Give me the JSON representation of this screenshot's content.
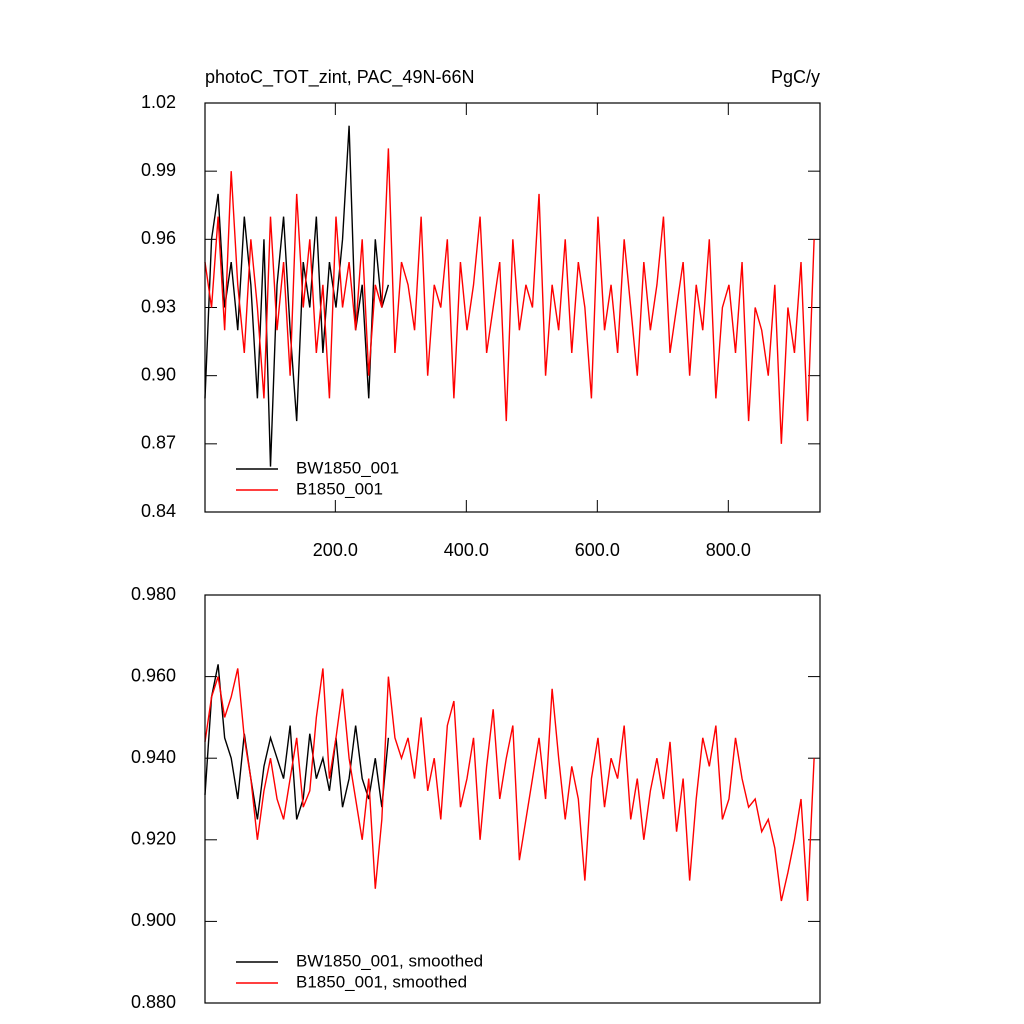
{
  "chart_data": [
    {
      "type": "line",
      "title": "photoC_TOT_zint, PAC_49N-66N",
      "units": "PgC/y",
      "xlim": [
        1,
        940
      ],
      "ylim": [
        0.84,
        1.02
      ],
      "xticks": [
        {
          "value": 200,
          "label": "200.0"
        },
        {
          "value": 400,
          "label": "400.0"
        },
        {
          "value": 600,
          "label": "600.0"
        },
        {
          "value": 800,
          "label": "800.0"
        }
      ],
      "yticks": [
        0.84,
        0.87,
        {
          "value": 0.9,
          "label": "0.90"
        },
        0.93,
        0.96,
        0.99,
        1.02
      ],
      "series": [
        {
          "name": "BW1850_001",
          "color": "#000000",
          "x": [
            1,
            11,
            21,
            31,
            41,
            51,
            61,
            71,
            81,
            91,
            101,
            111,
            121,
            131,
            141,
            151,
            161,
            171,
            181,
            191,
            201,
            211,
            221,
            231,
            241,
            251,
            261,
            271,
            281
          ],
          "values": [
            0.89,
            0.96,
            0.98,
            0.93,
            0.95,
            0.92,
            0.97,
            0.94,
            0.89,
            0.96,
            0.86,
            0.94,
            0.97,
            0.92,
            0.88,
            0.95,
            0.93,
            0.97,
            0.91,
            0.95,
            0.93,
            0.96,
            1.01,
            0.92,
            0.94,
            0.89,
            0.96,
            0.93,
            0.94
          ]
        },
        {
          "name": "B1850_001",
          "color": "#ff0000",
          "x": [
            1,
            11,
            21,
            31,
            41,
            51,
            61,
            71,
            81,
            91,
            101,
            111,
            121,
            131,
            141,
            151,
            161,
            171,
            181,
            191,
            201,
            211,
            221,
            231,
            241,
            251,
            261,
            271,
            281,
            291,
            301,
            311,
            321,
            331,
            341,
            351,
            361,
            371,
            381,
            391,
            401,
            411,
            421,
            431,
            441,
            451,
            461,
            471,
            481,
            491,
            501,
            511,
            521,
            531,
            541,
            551,
            561,
            571,
            581,
            591,
            601,
            611,
            621,
            631,
            641,
            651,
            661,
            671,
            681,
            691,
            701,
            711,
            721,
            731,
            741,
            751,
            761,
            771,
            781,
            791,
            801,
            811,
            821,
            831,
            841,
            851,
            861,
            871,
            881,
            891,
            901,
            911,
            921,
            931
          ],
          "values": [
            0.95,
            0.93,
            0.97,
            0.92,
            0.99,
            0.94,
            0.91,
            0.96,
            0.93,
            0.89,
            0.97,
            0.92,
            0.95,
            0.9,
            0.98,
            0.93,
            0.96,
            0.91,
            0.94,
            0.89,
            0.97,
            0.93,
            0.95,
            0.92,
            0.96,
            0.9,
            0.94,
            0.93,
            1.0,
            0.91,
            0.95,
            0.94,
            0.92,
            0.97,
            0.9,
            0.94,
            0.93,
            0.96,
            0.89,
            0.95,
            0.92,
            0.94,
            0.97,
            0.91,
            0.93,
            0.95,
            0.88,
            0.96,
            0.92,
            0.94,
            0.93,
            0.98,
            0.9,
            0.94,
            0.92,
            0.96,
            0.91,
            0.95,
            0.93,
            0.89,
            0.97,
            0.92,
            0.94,
            0.91,
            0.96,
            0.93,
            0.9,
            0.95,
            0.92,
            0.94,
            0.97,
            0.91,
            0.93,
            0.95,
            0.9,
            0.94,
            0.92,
            0.96,
            0.89,
            0.93,
            0.94,
            0.91,
            0.95,
            0.88,
            0.93,
            0.92,
            0.9,
            0.94,
            0.87,
            0.93,
            0.91,
            0.95,
            0.88,
            0.96
          ]
        }
      ]
    },
    {
      "type": "line",
      "xlim": [
        1,
        940
      ],
      "ylim": [
        0.88,
        0.98
      ],
      "yticks": [
        {
          "value": 0.88,
          "label": "0.880"
        },
        {
          "value": 0.9,
          "label": "0.900"
        },
        {
          "value": 0.92,
          "label": "0.920"
        },
        {
          "value": 0.94,
          "label": "0.940"
        },
        {
          "value": 0.96,
          "label": "0.960"
        },
        {
          "value": 0.98,
          "label": "0.980"
        }
      ],
      "series": [
        {
          "name": "BW1850_001, smoothed",
          "color": "#000000",
          "x": [
            1,
            11,
            21,
            31,
            41,
            51,
            61,
            71,
            81,
            91,
            101,
            111,
            121,
            131,
            141,
            151,
            161,
            171,
            181,
            191,
            201,
            211,
            221,
            231,
            241,
            251,
            261,
            271,
            281
          ],
          "values": [
            0.931,
            0.955,
            0.963,
            0.945,
            0.94,
            0.93,
            0.946,
            0.935,
            0.925,
            0.938,
            0.945,
            0.94,
            0.935,
            0.948,
            0.925,
            0.93,
            0.946,
            0.935,
            0.94,
            0.932,
            0.945,
            0.928,
            0.935,
            0.948,
            0.935,
            0.93,
            0.94,
            0.928,
            0.945
          ]
        },
        {
          "name": "B1850_001, smoothed",
          "color": "#ff0000",
          "x": [
            1,
            11,
            21,
            31,
            41,
            51,
            61,
            71,
            81,
            91,
            101,
            111,
            121,
            131,
            141,
            151,
            161,
            171,
            181,
            191,
            201,
            211,
            221,
            231,
            241,
            251,
            261,
            271,
            281,
            291,
            301,
            311,
            321,
            331,
            341,
            351,
            361,
            371,
            381,
            391,
            401,
            411,
            421,
            431,
            441,
            451,
            461,
            471,
            481,
            491,
            501,
            511,
            521,
            531,
            541,
            551,
            561,
            571,
            581,
            591,
            601,
            611,
            621,
            631,
            641,
            651,
            661,
            671,
            681,
            691,
            701,
            711,
            721,
            731,
            741,
            751,
            761,
            771,
            781,
            791,
            801,
            811,
            821,
            831,
            841,
            851,
            861,
            871,
            881,
            891,
            901,
            911,
            921,
            931
          ],
          "values": [
            0.944,
            0.955,
            0.96,
            0.95,
            0.955,
            0.962,
            0.945,
            0.935,
            0.92,
            0.932,
            0.94,
            0.93,
            0.925,
            0.935,
            0.945,
            0.928,
            0.932,
            0.95,
            0.962,
            0.935,
            0.945,
            0.957,
            0.94,
            0.93,
            0.92,
            0.935,
            0.908,
            0.925,
            0.96,
            0.945,
            0.94,
            0.945,
            0.935,
            0.95,
            0.932,
            0.94,
            0.925,
            0.948,
            0.954,
            0.928,
            0.935,
            0.945,
            0.92,
            0.938,
            0.952,
            0.93,
            0.94,
            0.948,
            0.915,
            0.925,
            0.935,
            0.945,
            0.93,
            0.957,
            0.94,
            0.925,
            0.938,
            0.93,
            0.91,
            0.935,
            0.945,
            0.928,
            0.94,
            0.935,
            0.948,
            0.925,
            0.935,
            0.92,
            0.932,
            0.94,
            0.93,
            0.944,
            0.922,
            0.935,
            0.91,
            0.93,
            0.945,
            0.938,
            0.948,
            0.925,
            0.93,
            0.945,
            0.935,
            0.928,
            0.93,
            0.922,
            0.925,
            0.918,
            0.905,
            0.912,
            0.92,
            0.93,
            0.905,
            0.94
          ]
        }
      ]
    }
  ]
}
